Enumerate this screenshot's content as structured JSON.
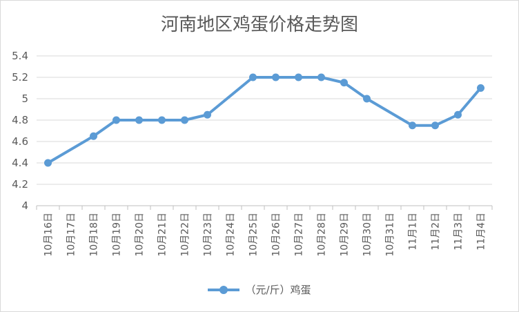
{
  "chart_data": {
    "type": "line",
    "title": "河南地区鸡蛋价格走势图",
    "xlabel": "",
    "ylabel": "",
    "ylim": [
      4,
      5.4
    ],
    "yticks": [
      "4",
      "4.2",
      "4.4",
      "4.6",
      "4.8",
      "5",
      "5.2",
      "5.4"
    ],
    "grid": true,
    "legend_position": "bottom",
    "categories": [
      "10月16日",
      "10月17日",
      "10月18日",
      "10月19日",
      "10月20日",
      "10月21日",
      "10月22日",
      "10月23日",
      "10月24日",
      "10月25日",
      "10月26日",
      "10月27日",
      "10月28日",
      "10月29日",
      "10月30日",
      "10月31日",
      "11月1日",
      "11月2日",
      "11月3日",
      "11月4日"
    ],
    "series": [
      {
        "name": "（元/斤）鸡蛋",
        "color": "#5b9bd5",
        "values": [
          4.4,
          null,
          4.65,
          4.8,
          4.8,
          4.8,
          4.8,
          4.85,
          null,
          5.2,
          5.2,
          5.2,
          5.2,
          5.15,
          5.0,
          null,
          4.75,
          4.75,
          4.85,
          5.1
        ]
      }
    ]
  }
}
